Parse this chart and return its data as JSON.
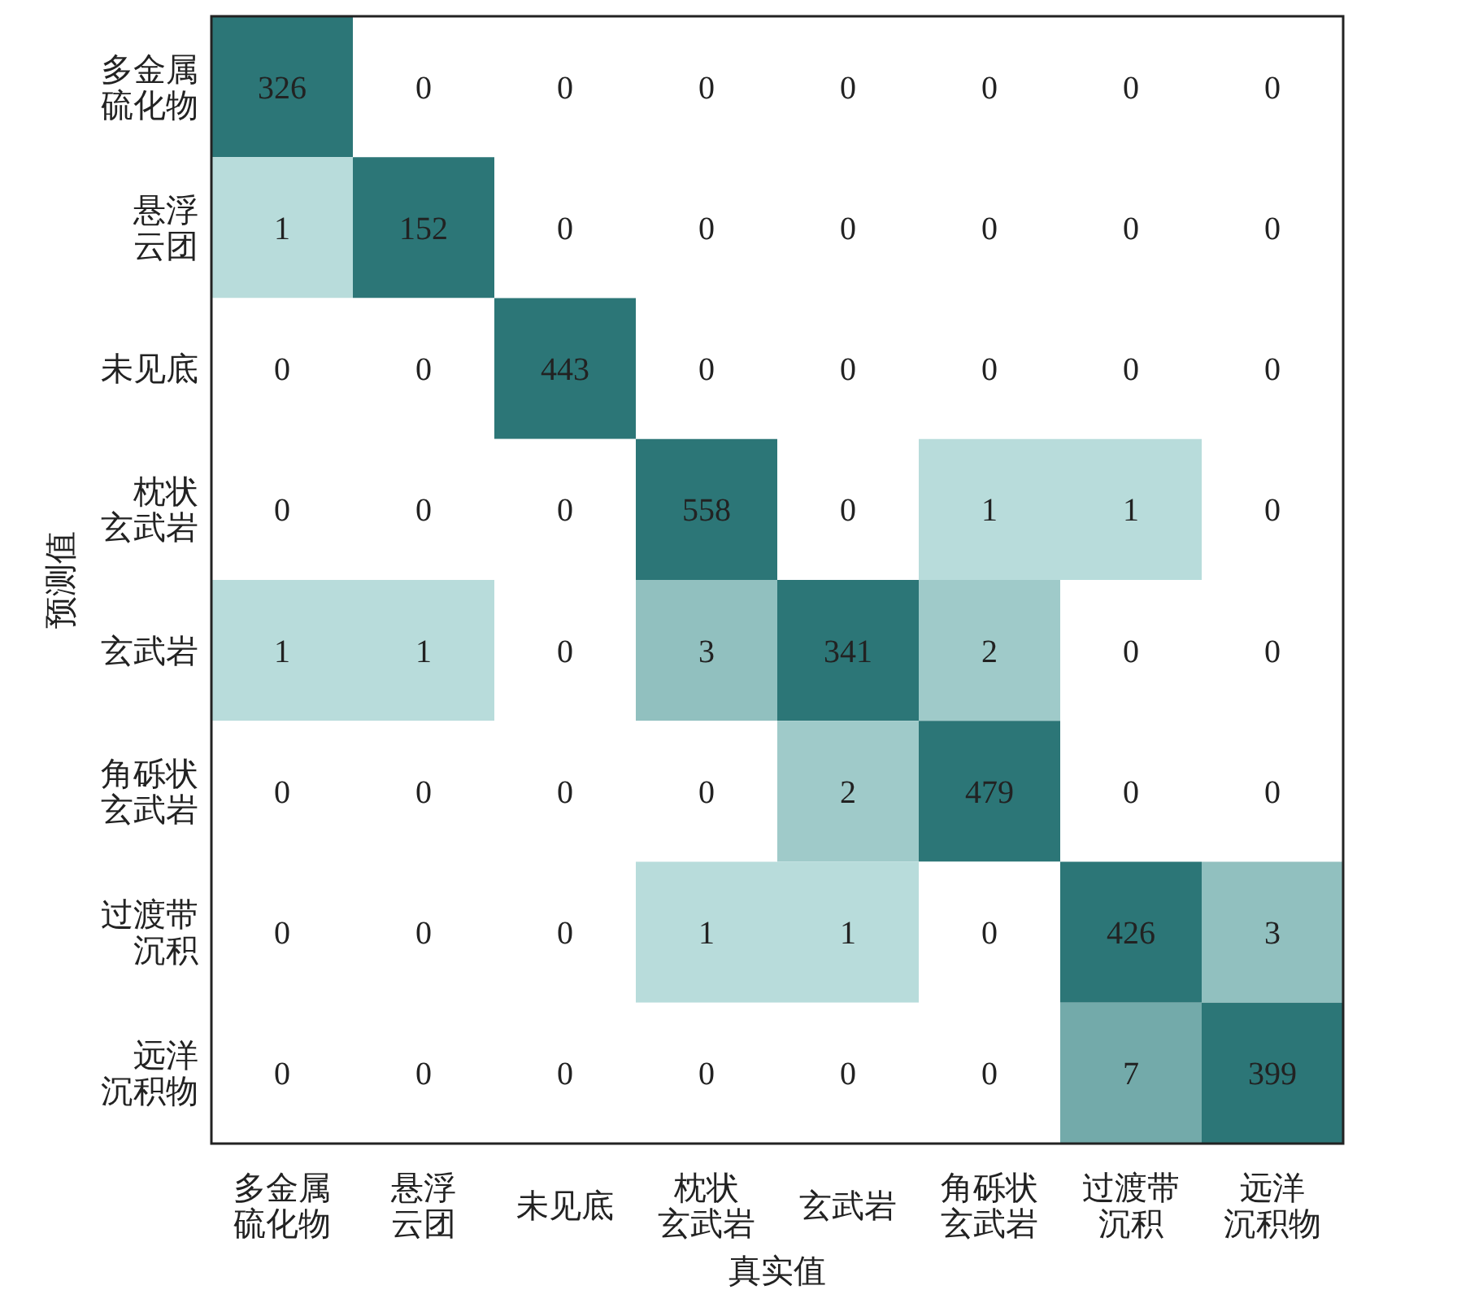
{
  "chart_data": {
    "type": "heatmap",
    "xlabel": "真实值",
    "ylabel": "预测值",
    "data_labels": true,
    "categories": [
      "多金属硫化物",
      "悬浮云团",
      "未见底",
      "枕状玄武岩",
      "玄武岩",
      "角砾状玄武岩",
      "过渡带沉积",
      "远洋沉积物"
    ],
    "y_categories": [
      "多金属硫化物",
      "悬浮云团",
      "未见底",
      "枕状玄武岩",
      "玄武岩",
      "角砾状玄武岩",
      "过渡带沉积",
      "远洋沉积物"
    ],
    "cells": [
      [
        326,
        0,
        0,
        0,
        0,
        0,
        0,
        0
      ],
      [
        1,
        152,
        0,
        0,
        0,
        0,
        0,
        0
      ],
      [
        0,
        0,
        443,
        0,
        0,
        0,
        0,
        0
      ],
      [
        0,
        0,
        0,
        558,
        0,
        1,
        1,
        0
      ],
      [
        1,
        1,
        0,
        3,
        341,
        2,
        0,
        0
      ],
      [
        0,
        0,
        0,
        0,
        2,
        479,
        0,
        0
      ],
      [
        0,
        0,
        0,
        1,
        1,
        0,
        426,
        3
      ],
      [
        0,
        0,
        0,
        0,
        0,
        0,
        7,
        399
      ]
    ]
  }
}
